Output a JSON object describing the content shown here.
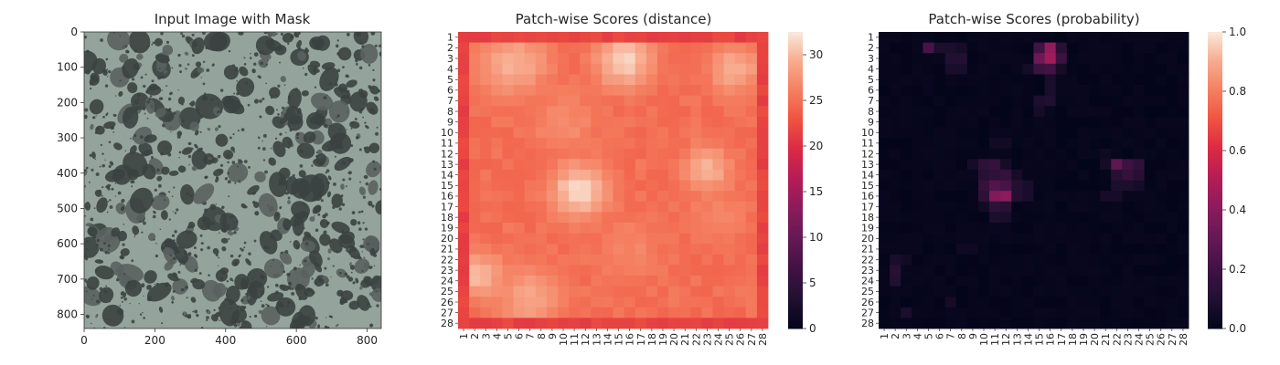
{
  "chart_data": [
    {
      "type": "image",
      "title": "Input Image with Mask",
      "xlabel": "",
      "ylabel": "",
      "xlim": [
        0,
        840
      ],
      "ylim": [
        840,
        0
      ],
      "x_ticks": [
        0,
        200,
        400,
        600,
        800
      ],
      "y_ticks": [
        0,
        100,
        200,
        300,
        400,
        500,
        600,
        700,
        800
      ],
      "colors": {
        "background": "#94a39c",
        "blob": "#3a4240",
        "blob_edge": "#59625f"
      }
    },
    {
      "type": "heatmap",
      "title": "Patch-wise Scores (distance)",
      "xlabel": "",
      "ylabel": "",
      "rows": 28,
      "cols": 28,
      "x_tick_labels": [
        "1",
        "2",
        "3",
        "4",
        "5",
        "6",
        "7",
        "8",
        "9",
        "10",
        "11",
        "12",
        "13",
        "14",
        "15",
        "16",
        "17",
        "18",
        "19",
        "20",
        "21",
        "22",
        "23",
        "24",
        "25",
        "26",
        "27",
        "28"
      ],
      "y_tick_labels": [
        "1",
        "2",
        "3",
        "4",
        "5",
        "6",
        "7",
        "8",
        "9",
        "10",
        "11",
        "12",
        "13",
        "14",
        "15",
        "16",
        "17",
        "18",
        "19",
        "20",
        "21",
        "22",
        "23",
        "24",
        "25",
        "26",
        "27",
        "28"
      ],
      "colorbar": {
        "min": 0,
        "max": 32.5,
        "ticks": [
          0,
          5,
          10,
          15,
          20,
          25,
          30
        ]
      },
      "base_value": 24.5,
      "border_value": 21.5,
      "hotspots": [
        {
          "row": 3.5,
          "col": 5.5,
          "value": 29.5,
          "spread": 2.2
        },
        {
          "row": 3.2,
          "col": 15.5,
          "value": 31.5,
          "spread": 1.8
        },
        {
          "row": 4.0,
          "col": 25.5,
          "value": 29.5,
          "spread": 1.6
        },
        {
          "row": 15.5,
          "col": 11.5,
          "value": 32.0,
          "spread": 1.8
        },
        {
          "row": 13.5,
          "col": 23.0,
          "value": 29.5,
          "spread": 1.6
        },
        {
          "row": 23.5,
          "col": 2.5,
          "value": 30.0,
          "spread": 1.6
        },
        {
          "row": 25.5,
          "col": 7.0,
          "value": 29.0,
          "spread": 2.0
        },
        {
          "row": 9.0,
          "col": 10.0,
          "value": 27.0,
          "spread": 2.2
        },
        {
          "row": 21.0,
          "col": 16.0,
          "value": 26.5,
          "spread": 2.2
        },
        {
          "row": 18.0,
          "col": 24.0,
          "value": 26.5,
          "spread": 2.0
        }
      ]
    },
    {
      "type": "heatmap",
      "title": "Patch-wise Scores (probability)",
      "xlabel": "",
      "ylabel": "",
      "rows": 28,
      "cols": 28,
      "x_tick_labels": [
        "1",
        "2",
        "3",
        "4",
        "5",
        "6",
        "7",
        "8",
        "9",
        "10",
        "11",
        "12",
        "13",
        "14",
        "15",
        "16",
        "17",
        "18",
        "19",
        "20",
        "21",
        "22",
        "23",
        "24",
        "25",
        "26",
        "27",
        "28"
      ],
      "y_tick_labels": [
        "1",
        "2",
        "3",
        "4",
        "5",
        "6",
        "7",
        "8",
        "9",
        "10",
        "11",
        "12",
        "13",
        "14",
        "15",
        "16",
        "17",
        "18",
        "19",
        "20",
        "21",
        "22",
        "23",
        "24",
        "25",
        "26",
        "27",
        "28"
      ],
      "colorbar": {
        "min": 0,
        "max": 1.0,
        "ticks": [
          "0.0",
          "0.2",
          "0.4",
          "0.6",
          "0.8",
          "1.0"
        ]
      },
      "base_value": 0.0,
      "cells": [
        {
          "row": 2,
          "col": 5,
          "value": 0.22
        },
        {
          "row": 2,
          "col": 6,
          "value": 0.08
        },
        {
          "row": 2,
          "col": 7,
          "value": 0.08
        },
        {
          "row": 2,
          "col": 8,
          "value": 0.06
        },
        {
          "row": 3,
          "col": 7,
          "value": 0.1
        },
        {
          "row": 3,
          "col": 8,
          "value": 0.1
        },
        {
          "row": 4,
          "col": 7,
          "value": 0.07
        },
        {
          "row": 4,
          "col": 8,
          "value": 0.07
        },
        {
          "row": 2,
          "col": 16,
          "value": 0.42
        },
        {
          "row": 2,
          "col": 15,
          "value": 0.2
        },
        {
          "row": 2,
          "col": 17,
          "value": 0.12
        },
        {
          "row": 3,
          "col": 15,
          "value": 0.32
        },
        {
          "row": 3,
          "col": 16,
          "value": 0.45
        },
        {
          "row": 3,
          "col": 17,
          "value": 0.18
        },
        {
          "row": 4,
          "col": 15,
          "value": 0.18
        },
        {
          "row": 4,
          "col": 16,
          "value": 0.2
        },
        {
          "row": 4,
          "col": 14,
          "value": 0.06
        },
        {
          "row": 4,
          "col": 17,
          "value": 0.06
        },
        {
          "row": 5,
          "col": 16,
          "value": 0.07
        },
        {
          "row": 6,
          "col": 16,
          "value": 0.07
        },
        {
          "row": 7,
          "col": 15,
          "value": 0.08
        },
        {
          "row": 7,
          "col": 16,
          "value": 0.09
        },
        {
          "row": 8,
          "col": 15,
          "value": 0.06
        },
        {
          "row": 11,
          "col": 11,
          "value": 0.05
        },
        {
          "row": 11,
          "col": 12,
          "value": 0.05
        },
        {
          "row": 13,
          "col": 10,
          "value": 0.14
        },
        {
          "row": 13,
          "col": 11,
          "value": 0.16
        },
        {
          "row": 13,
          "col": 9,
          "value": 0.06
        },
        {
          "row": 13,
          "col": 12,
          "value": 0.06
        },
        {
          "row": 14,
          "col": 10,
          "value": 0.12
        },
        {
          "row": 14,
          "col": 11,
          "value": 0.14
        },
        {
          "row": 14,
          "col": 12,
          "value": 0.16
        },
        {
          "row": 14,
          "col": 13,
          "value": 0.06
        },
        {
          "row": 15,
          "col": 10,
          "value": 0.16
        },
        {
          "row": 15,
          "col": 11,
          "value": 0.25
        },
        {
          "row": 15,
          "col": 12,
          "value": 0.22
        },
        {
          "row": 15,
          "col": 13,
          "value": 0.1
        },
        {
          "row": 15,
          "col": 14,
          "value": 0.07
        },
        {
          "row": 16,
          "col": 10,
          "value": 0.14
        },
        {
          "row": 16,
          "col": 11,
          "value": 0.38
        },
        {
          "row": 16,
          "col": 12,
          "value": 0.4
        },
        {
          "row": 16,
          "col": 13,
          "value": 0.1
        },
        {
          "row": 16,
          "col": 14,
          "value": 0.07
        },
        {
          "row": 17,
          "col": 11,
          "value": 0.14
        },
        {
          "row": 17,
          "col": 12,
          "value": 0.12
        },
        {
          "row": 17,
          "col": 10,
          "value": 0.05
        },
        {
          "row": 18,
          "col": 11,
          "value": 0.08
        },
        {
          "row": 18,
          "col": 12,
          "value": 0.07
        },
        {
          "row": 13,
          "col": 22,
          "value": 0.28
        },
        {
          "row": 13,
          "col": 23,
          "value": 0.18
        },
        {
          "row": 13,
          "col": 24,
          "value": 0.14
        },
        {
          "row": 13,
          "col": 21,
          "value": 0.06
        },
        {
          "row": 14,
          "col": 22,
          "value": 0.12
        },
        {
          "row": 14,
          "col": 23,
          "value": 0.16
        },
        {
          "row": 14,
          "col": 24,
          "value": 0.12
        },
        {
          "row": 15,
          "col": 22,
          "value": 0.08
        },
        {
          "row": 15,
          "col": 23,
          "value": 0.08
        },
        {
          "row": 15,
          "col": 24,
          "value": 0.06
        },
        {
          "row": 16,
          "col": 21,
          "value": 0.06
        },
        {
          "row": 16,
          "col": 22,
          "value": 0.06
        },
        {
          "row": 12,
          "col": 21,
          "value": 0.04
        },
        {
          "row": 22,
          "col": 2,
          "value": 0.07
        },
        {
          "row": 23,
          "col": 2,
          "value": 0.12
        },
        {
          "row": 24,
          "col": 2,
          "value": 0.1
        },
        {
          "row": 22,
          "col": 3,
          "value": 0.05
        },
        {
          "row": 26,
          "col": 7,
          "value": 0.06
        },
        {
          "row": 27,
          "col": 3,
          "value": 0.08
        },
        {
          "row": 21,
          "col": 8,
          "value": 0.04
        },
        {
          "row": 21,
          "col": 9,
          "value": 0.04
        }
      ]
    }
  ]
}
